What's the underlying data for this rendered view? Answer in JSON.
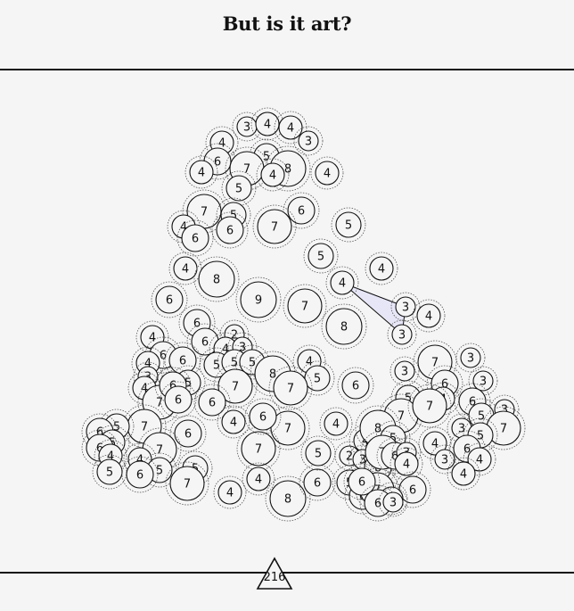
{
  "header": {
    "title": "But is it art?"
  },
  "footer": {
    "page_number": "216"
  },
  "colors": {
    "background": "#f6f5f6",
    "ink": "#111111",
    "highlight_fill": "#e6e6f7"
  },
  "puzzle": {
    "circles": [
      {
        "n": "3"
      },
      {
        "n": "4"
      },
      {
        "n": "4"
      },
      {
        "n": "3"
      },
      {
        "n": "4"
      },
      {
        "n": "6"
      },
      {
        "n": "5"
      },
      {
        "n": "8"
      },
      {
        "n": "7"
      },
      {
        "n": "4"
      },
      {
        "n": "4"
      },
      {
        "n": "4"
      },
      {
        "n": "5"
      },
      {
        "n": "7"
      },
      {
        "n": "5"
      },
      {
        "n": "6"
      },
      {
        "n": "4"
      },
      {
        "n": "6"
      },
      {
        "n": "6"
      },
      {
        "n": "7"
      },
      {
        "n": "5"
      },
      {
        "n": "4"
      },
      {
        "n": "8"
      },
      {
        "n": "6"
      },
      {
        "n": "9"
      },
      {
        "n": "7"
      },
      {
        "n": "5"
      },
      {
        "n": "4"
      },
      {
        "n": "4"
      },
      {
        "n": "8"
      },
      {
        "n": "3"
      },
      {
        "n": "4"
      },
      {
        "n": "3"
      },
      {
        "n": "6"
      },
      {
        "n": "4"
      },
      {
        "n": "2"
      },
      {
        "n": "6"
      },
      {
        "n": "4"
      },
      {
        "n": "3"
      },
      {
        "n": "6"
      },
      {
        "n": "5"
      },
      {
        "n": "5"
      },
      {
        "n": "5"
      },
      {
        "n": "8"
      },
      {
        "n": "4"
      },
      {
        "n": "4"
      },
      {
        "n": "3"
      },
      {
        "n": "6"
      },
      {
        "n": "5"
      },
      {
        "n": "4"
      },
      {
        "n": "7"
      },
      {
        "n": "7"
      },
      {
        "n": "5"
      },
      {
        "n": "6"
      },
      {
        "n": "7"
      },
      {
        "n": "6"
      },
      {
        "n": "6"
      },
      {
        "n": "6"
      },
      {
        "n": "7"
      },
      {
        "n": "3"
      },
      {
        "n": "3"
      },
      {
        "n": "6"
      },
      {
        "n": "3"
      },
      {
        "n": "5"
      },
      {
        "n": "4"
      },
      {
        "n": "7"
      },
      {
        "n": "6"
      },
      {
        "n": "7"
      },
      {
        "n": "5"
      },
      {
        "n": "3"
      },
      {
        "n": "7"
      },
      {
        "n": "3"
      },
      {
        "n": "5"
      },
      {
        "n": "7"
      },
      {
        "n": "4"
      },
      {
        "n": "4"
      },
      {
        "n": "7"
      },
      {
        "n": "4"
      },
      {
        "n": "6"
      },
      {
        "n": "6"
      },
      {
        "n": "7"
      },
      {
        "n": "5"
      },
      {
        "n": "6"
      },
      {
        "n": "5"
      },
      {
        "n": "6"
      },
      {
        "n": "4"
      },
      {
        "n": "7"
      },
      {
        "n": "4"
      },
      {
        "n": "5"
      },
      {
        "n": "5"
      },
      {
        "n": "6"
      },
      {
        "n": "5"
      },
      {
        "n": "7"
      },
      {
        "n": "4"
      },
      {
        "n": "4"
      },
      {
        "n": "8"
      },
      {
        "n": "6"
      },
      {
        "n": "5"
      },
      {
        "n": "2"
      },
      {
        "n": "4"
      },
      {
        "n": "8"
      },
      {
        "n": "5"
      },
      {
        "n": "3"
      },
      {
        "n": "6"
      },
      {
        "n": "7"
      },
      {
        "n": "6"
      },
      {
        "n": "3"
      },
      {
        "n": "4"
      },
      {
        "n": "3"
      },
      {
        "n": "6"
      },
      {
        "n": "4"
      },
      {
        "n": "4"
      },
      {
        "n": "6"
      },
      {
        "n": "5"
      },
      {
        "n": "6"
      },
      {
        "n": "7"
      },
      {
        "n": "4"
      },
      {
        "n": "6"
      },
      {
        "n": "6"
      },
      {
        "n": "3"
      }
    ]
  }
}
